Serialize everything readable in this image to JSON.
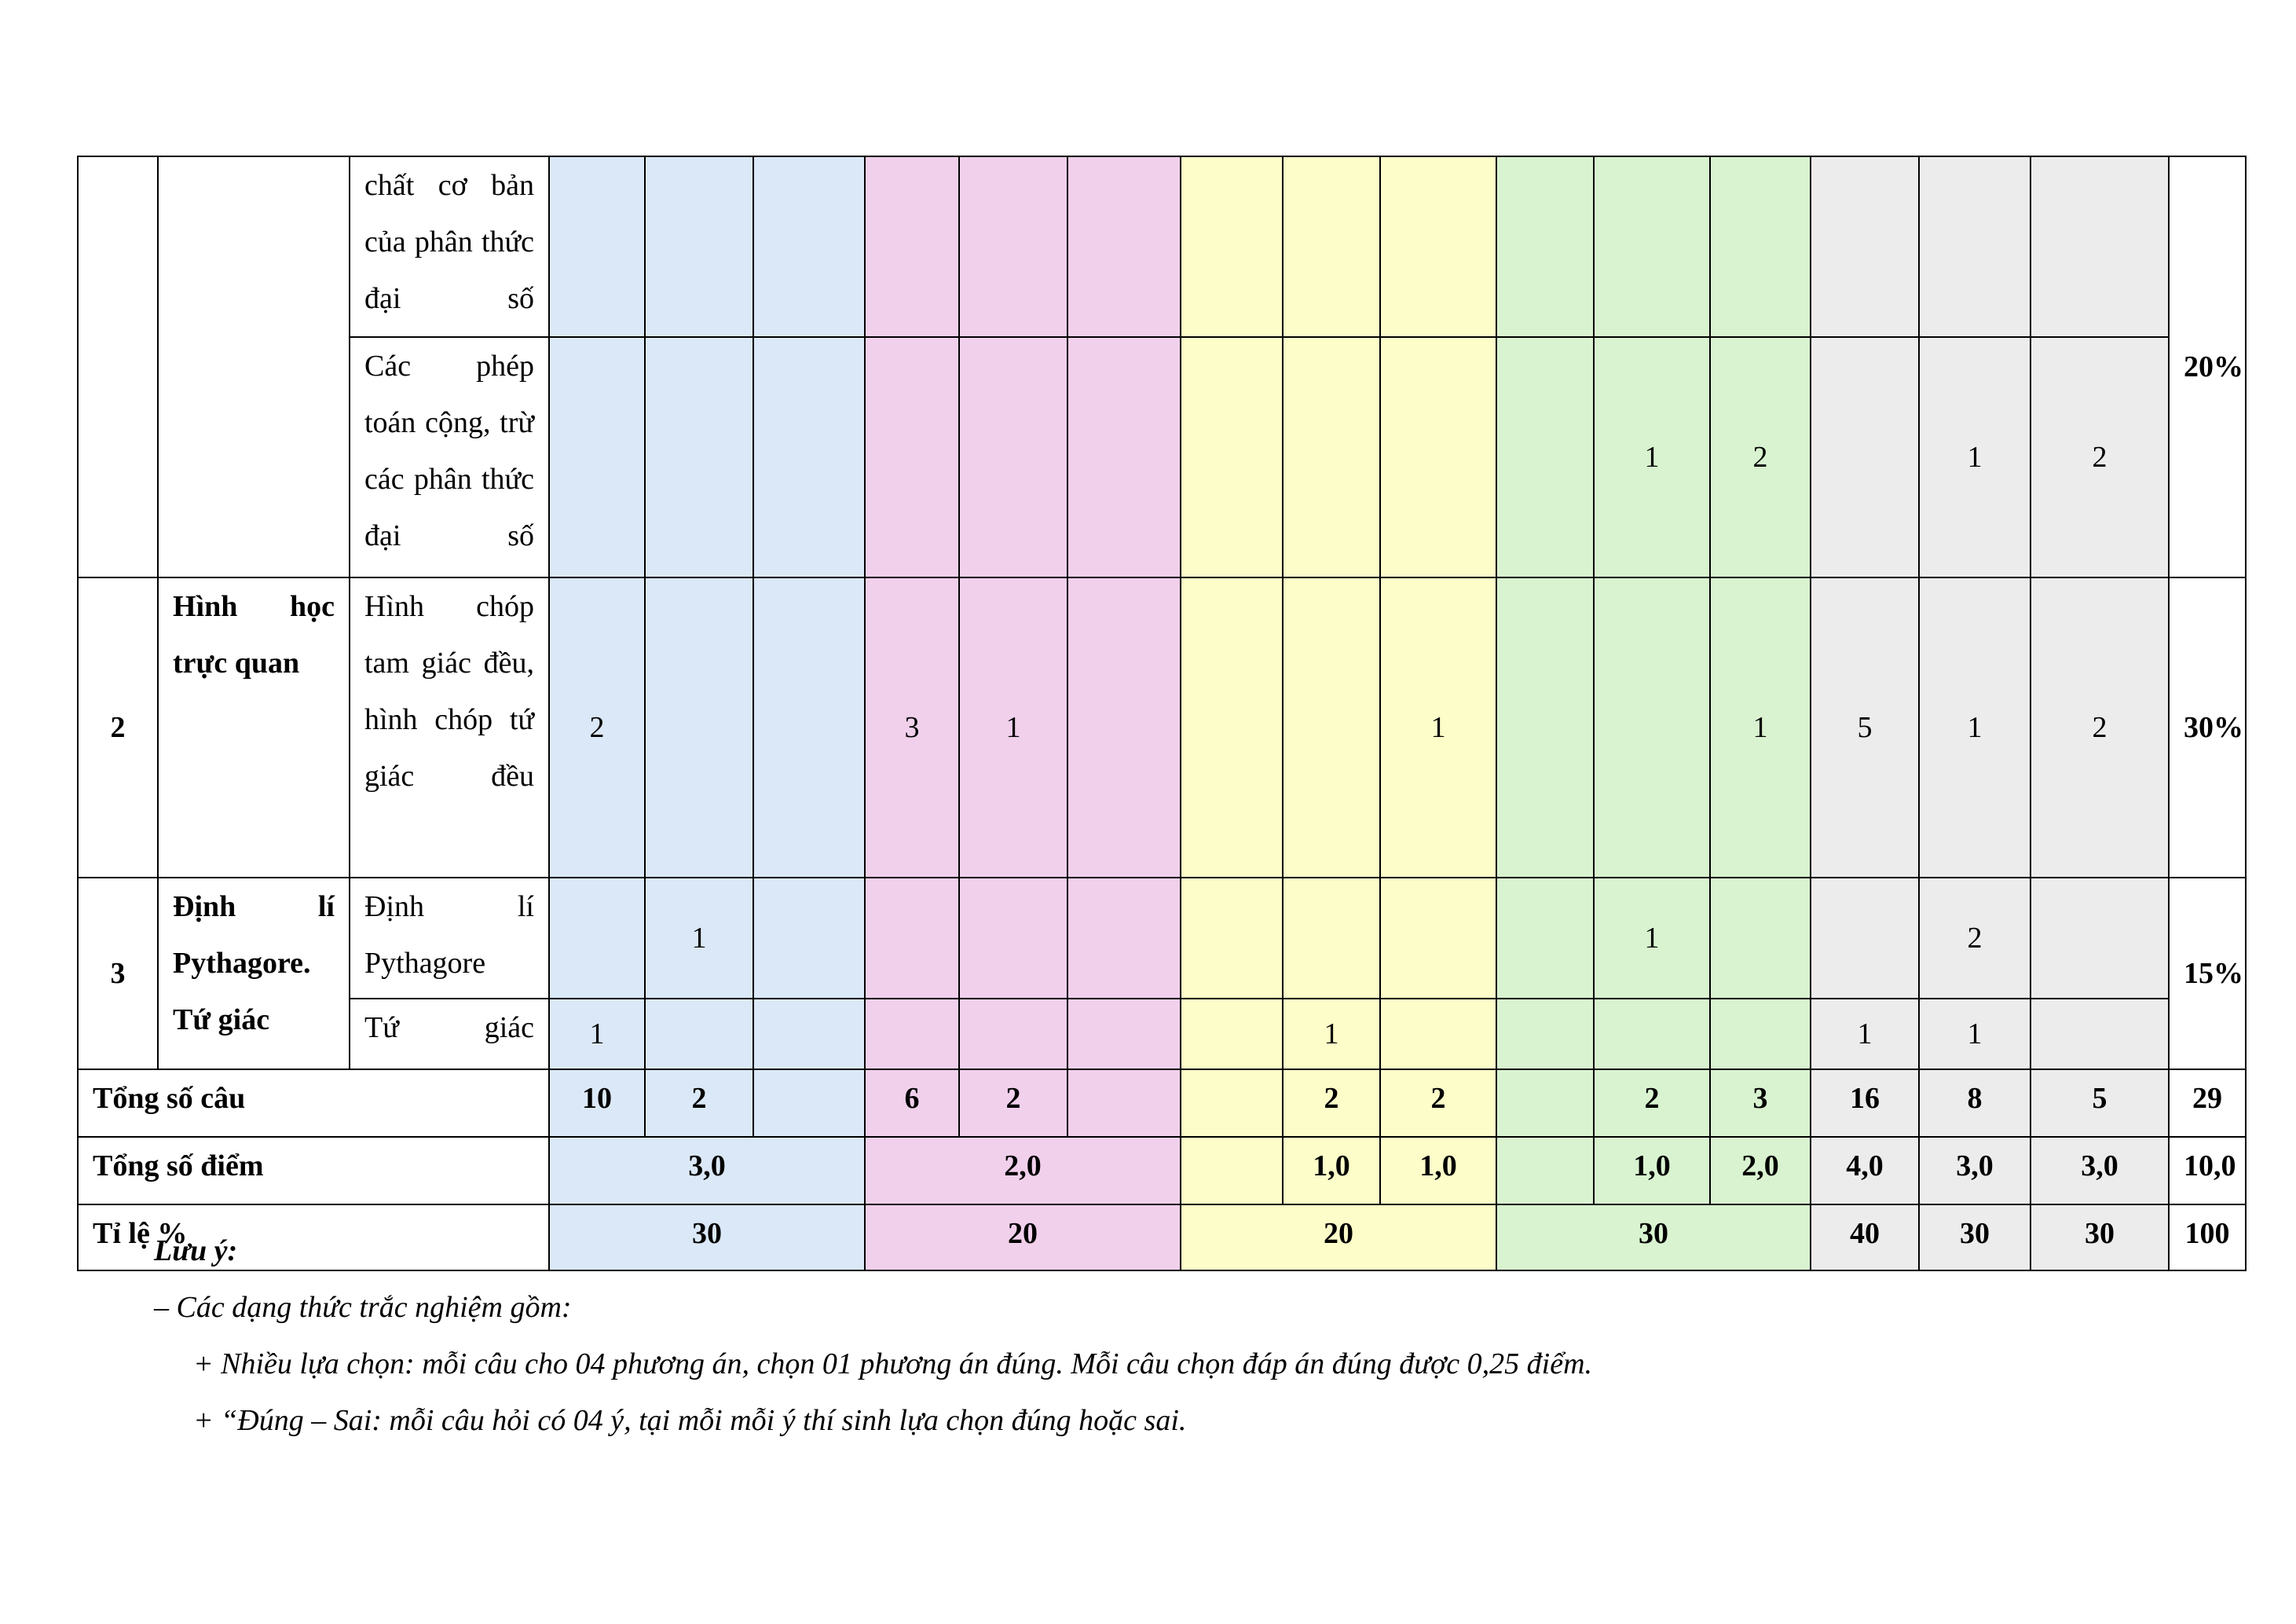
{
  "table": {
    "rows": [
      {
        "topic": "chất cơ bản của phân thức đại số"
      },
      {
        "topic": "Các phép toán cộng, trừ các phân thức đại số",
        "cells": [
          "",
          "",
          "",
          "",
          "",
          "",
          "",
          "",
          "",
          "",
          "1",
          "2",
          "",
          "1",
          "2"
        ]
      },
      {
        "stt": "2",
        "name": "Hình học trực quan",
        "topic": "Hình chóp tam giác đều, hình chóp tứ giác đều",
        "cells": [
          "2",
          "",
          "",
          "3",
          "1",
          "",
          "",
          "",
          "1",
          "",
          "",
          "1",
          "5",
          "1",
          "2"
        ],
        "pct": "30%"
      },
      {
        "stt": "3",
        "name": "Định lí Pythagore. Tứ giác",
        "topic": "Định lí Pythagore",
        "cells": [
          "",
          "1",
          "",
          "",
          "",
          "",
          "",
          "",
          "",
          "",
          "1",
          "",
          "",
          "2",
          ""
        ],
        "pct": "15%"
      },
      {
        "topic": "Tứ giác",
        "cells": [
          "1",
          "",
          "",
          "",
          "",
          "",
          "",
          "1",
          "",
          "",
          "",
          "",
          "1",
          "1",
          ""
        ]
      }
    ],
    "pct_first": "20%",
    "total_questions": {
      "label": "Tổng số câu",
      "cells": [
        "10",
        "2",
        "",
        "6",
        "2",
        "",
        "",
        "2",
        "2",
        "",
        "2",
        "3",
        "16",
        "8",
        "5"
      ],
      "total": "29"
    },
    "total_points": {
      "label": "Tổng số điểm",
      "blue": "3,0",
      "pink": "2,0",
      "yellow": [
        "",
        "1,0",
        "1,0"
      ],
      "green": [
        "",
        "1,0",
        "2,0"
      ],
      "gray": [
        "4,0",
        "3,0",
        "3,0"
      ],
      "total": "10,0"
    },
    "percent": {
      "label": "Tỉ lệ %",
      "blue": "30",
      "pink": "20",
      "yellow": "20",
      "green": "30",
      "gray": [
        "40",
        "30",
        "30"
      ],
      "total": "100"
    }
  },
  "notes": {
    "title": "Lưu ý:",
    "line1": "– Các dạng thức trắc nghiệm gồm:",
    "line2": "+ Nhiều lựa chọn: mỗi câu cho 04 phương án, chọn 01 phương án đúng. Mỗi câu chọn đáp án đúng được 0,25 điểm.",
    "line3": "+ “Đúng – Sai: mỗi câu hỏi có 04 ý, tại mỗi mỗi ý thí sinh lựa chọn đúng hoặc sai."
  }
}
